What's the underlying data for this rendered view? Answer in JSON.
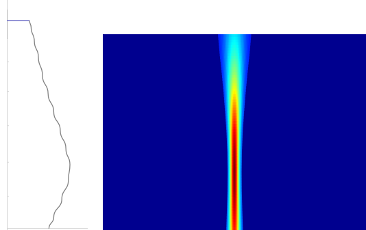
{
  "chart_data": [
    {
      "type": "line",
      "title": "",
      "xlabel": "",
      "ylabel": "",
      "grid": false,
      "series": [
        {
          "points": [
            [
              0.0,
              0.0
            ],
            [
              0.0,
              0.08
            ],
            [
              0.0,
              0.09
            ],
            [
              0.28,
              0.09
            ],
            [
              0.3,
              0.12
            ],
            [
              0.34,
              0.18
            ],
            [
              0.39,
              0.25
            ],
            [
              0.44,
              0.33
            ],
            [
              0.51,
              0.41
            ],
            [
              0.58,
              0.49
            ],
            [
              0.66,
              0.57
            ],
            [
              0.73,
              0.65
            ],
            [
              0.78,
              0.72
            ],
            [
              0.76,
              0.79
            ],
            [
              0.68,
              0.87
            ],
            [
              0.58,
              0.95
            ],
            [
              0.52,
              1.0
            ]
          ],
          "color": "#808080"
        }
      ],
      "accent_color": "#7070c8"
    },
    {
      "type": "heatmap",
      "title": "",
      "xlabel": "",
      "ylabel": "",
      "colormap": "jet",
      "background_color": "#00008f",
      "beam": {
        "center_x": 0.5,
        "rows": [
          {
            "y": 0.0,
            "width": 0.125,
            "peak": 0.35
          },
          {
            "y": 0.1,
            "width": 0.112,
            "peak": 0.42
          },
          {
            "y": 0.2,
            "width": 0.096,
            "peak": 0.52
          },
          {
            "y": 0.3,
            "width": 0.082,
            "peak": 0.64
          },
          {
            "y": 0.4,
            "width": 0.07,
            "peak": 0.78
          },
          {
            "y": 0.5,
            "width": 0.06,
            "peak": 0.9
          },
          {
            "y": 0.6,
            "width": 0.054,
            "peak": 0.97
          },
          {
            "y": 0.7,
            "width": 0.052,
            "peak": 1.0
          },
          {
            "y": 0.8,
            "width": 0.053,
            "peak": 0.98
          },
          {
            "y": 0.9,
            "width": 0.057,
            "peak": 0.92
          },
          {
            "y": 1.0,
            "width": 0.062,
            "peak": 0.85
          }
        ]
      }
    }
  ]
}
